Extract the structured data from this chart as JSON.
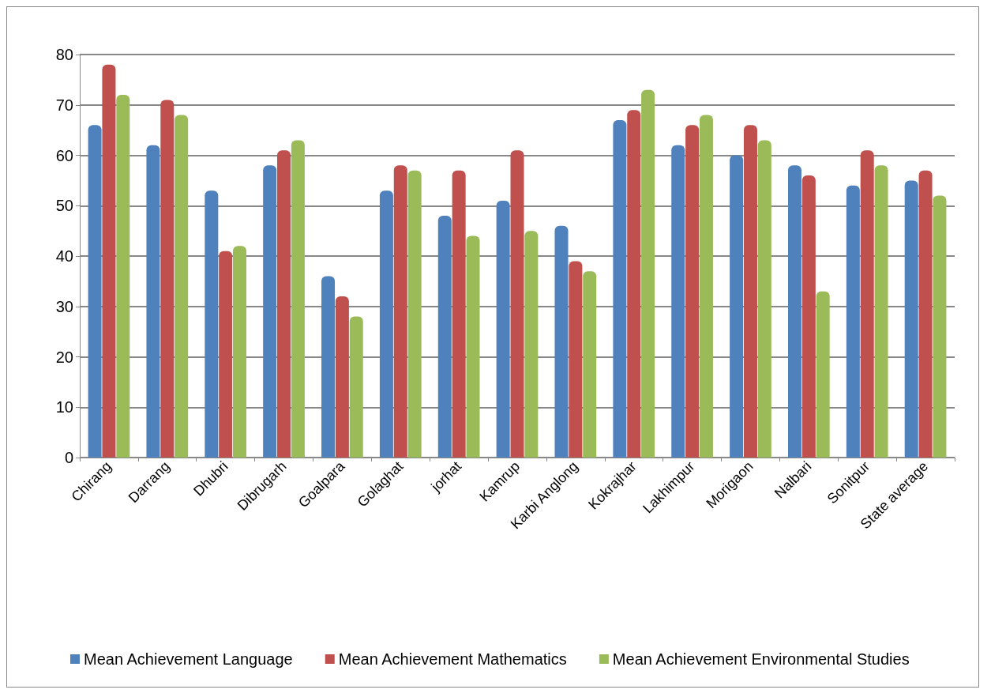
{
  "chart_data": {
    "type": "bar",
    "categories": [
      "Chirang",
      "Darrang",
      "Dhubri",
      "Dibrugarh",
      "Goalpara",
      "Golaghat",
      "jorhat",
      "Kamrup",
      "Karbi Anglong",
      "Kokrajhar",
      "Lakhimpur",
      "Morigaon",
      "Nalbari",
      "Sonitpur",
      "State average"
    ],
    "series": [
      {
        "name": "Mean Achievement Language",
        "color": "#4f81bd",
        "values": [
          66,
          62,
          53,
          58,
          36,
          53,
          48,
          51,
          46,
          67,
          62,
          60,
          58,
          54,
          55
        ]
      },
      {
        "name": "Mean Achievement Mathematics",
        "color": "#c0504d",
        "values": [
          78,
          71,
          41,
          61,
          32,
          58,
          57,
          61,
          39,
          69,
          66,
          66,
          56,
          61,
          57
        ]
      },
      {
        "name": "Mean Achievement Environmental Studies",
        "color": "#9bbb59",
        "values": [
          72,
          68,
          42,
          63,
          28,
          57,
          44,
          45,
          37,
          73,
          68,
          63,
          33,
          58,
          52
        ]
      }
    ],
    "ylim": [
      0,
      80
    ],
    "yticks": [
      0,
      10,
      20,
      30,
      40,
      50,
      60,
      70,
      80
    ],
    "grid": "y",
    "legend": "bottom"
  }
}
